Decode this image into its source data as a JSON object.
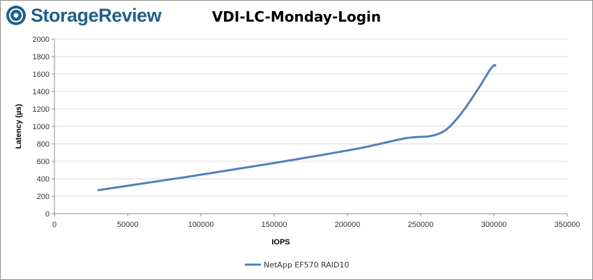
{
  "brand": {
    "name": "StorageReview",
    "logo_color": "#1f5f86"
  },
  "chart_data": {
    "type": "line",
    "title": "VDI-LC-Monday-Login",
    "xlabel": "IOPS",
    "ylabel": "Latency (µs)",
    "xlim": [
      0,
      350000
    ],
    "ylim": [
      0,
      2000
    ],
    "x_ticks": [
      0,
      50000,
      100000,
      150000,
      200000,
      250000,
      300000,
      350000
    ],
    "y_ticks": [
      0,
      200,
      400,
      600,
      800,
      1000,
      1200,
      1400,
      1600,
      1800,
      2000
    ],
    "grid": "horizontal",
    "legend_position": "bottom",
    "series": [
      {
        "name": "NetApp EF570 RAID10",
        "color": "#4f81bd",
        "points": [
          [
            30000,
            270
          ],
          [
            60000,
            345
          ],
          [
            90000,
            420
          ],
          [
            120000,
            500
          ],
          [
            150000,
            580
          ],
          [
            180000,
            665
          ],
          [
            210000,
            755
          ],
          [
            240000,
            865
          ],
          [
            255000,
            885
          ],
          [
            263000,
            920
          ],
          [
            270000,
            1000
          ],
          [
            280000,
            1200
          ],
          [
            290000,
            1450
          ],
          [
            297000,
            1640
          ],
          [
            300000,
            1700
          ],
          [
            301000,
            1695
          ]
        ]
      }
    ]
  }
}
